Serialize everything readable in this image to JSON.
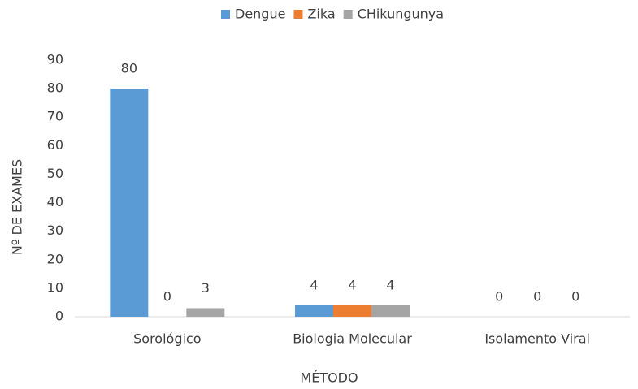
{
  "chart_data": {
    "type": "bar",
    "categories": [
      "Sorológico",
      "Biologia Molecular",
      "Isolamento Viral"
    ],
    "series": [
      {
        "name": "Dengue",
        "color": "#5b9bd5",
        "values": [
          80,
          4,
          0
        ]
      },
      {
        "name": "Zika",
        "color": "#ed7d31",
        "values": [
          0,
          4,
          0
        ]
      },
      {
        "name": "CHikungunya",
        "color": "#a5a5a5",
        "values": [
          3,
          4,
          0
        ]
      }
    ],
    "xlabel": "MÉTODO",
    "ylabel": "Nº DE EXAMES",
    "ylim": [
      0,
      90
    ],
    "yticks": [
      0,
      10,
      20,
      30,
      40,
      50,
      60,
      70,
      80,
      90
    ],
    "grid": false,
    "legend": "top",
    "data_labels": true
  }
}
